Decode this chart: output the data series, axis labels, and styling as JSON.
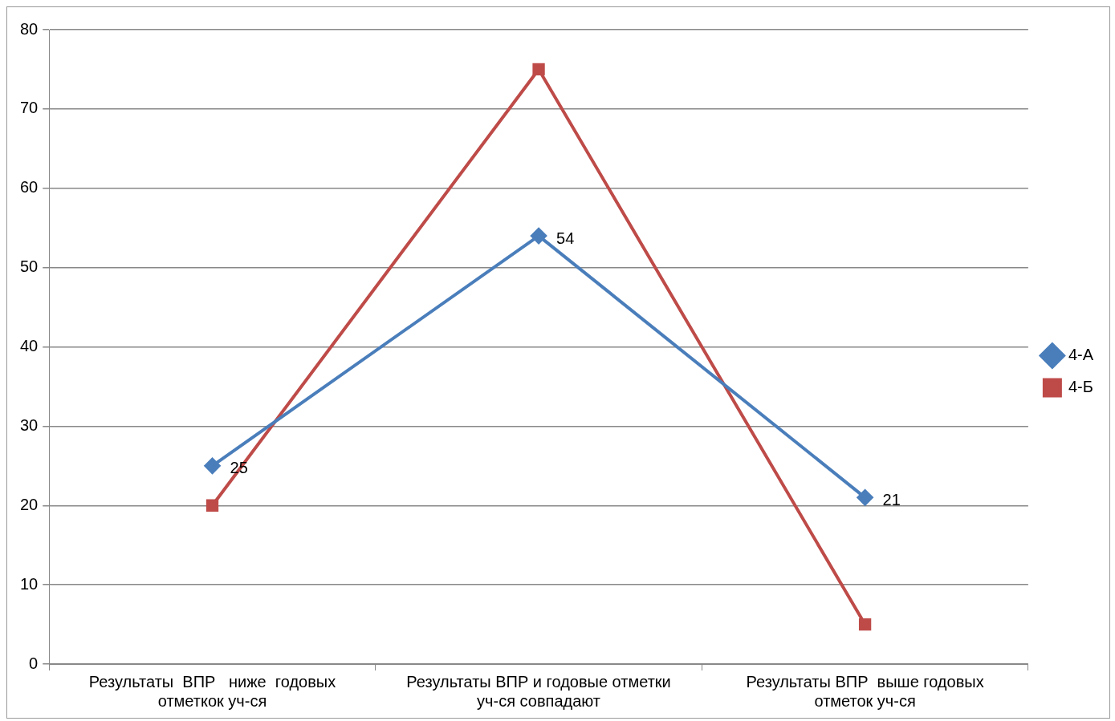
{
  "chart_data": {
    "type": "line",
    "categories": [
      "Результаты  ВПР   ниже  годовых отметкок уч-ся",
      "Результаты ВПР и годовые отметки уч-ся совпадают",
      "Результаты ВПР  выше годовых отметок уч-ся"
    ],
    "series": [
      {
        "name": "4-А",
        "color": "#4a7ebb",
        "marker": "diamond",
        "values": [
          25,
          54,
          21
        ],
        "value_labels": [
          "25",
          "54",
          "21"
        ]
      },
      {
        "name": "4-Б",
        "color": "#be4b48",
        "marker": "square",
        "values": [
          20,
          75,
          5
        ]
      }
    ],
    "ylim": [
      0,
      80
    ],
    "yticks": [
      0,
      10,
      20,
      30,
      40,
      50,
      60,
      70,
      80
    ],
    "grid": "y",
    "legend": "right"
  }
}
